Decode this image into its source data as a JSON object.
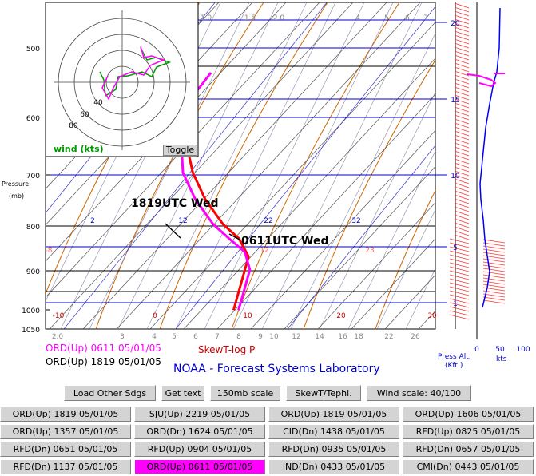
{
  "chart_data": {
    "type": "line",
    "title": "SkewT-log P",
    "ylabel": "Pressure (mb)",
    "pressure_ticks": [
      "500",
      "600",
      "700",
      "800",
      "900",
      "1000",
      "1050"
    ],
    "temp_bottom_ticks": [
      "2.0",
      "3",
      "4",
      "5",
      "6",
      "7",
      "8",
      "9",
      "10",
      "12",
      "14",
      "16",
      "18",
      "22",
      "26"
    ],
    "temp_top_ticks": [
      "1.0",
      "1.5",
      "2.0",
      "4",
      "5",
      "6",
      "7"
    ],
    "isotherm_labels": [
      "-10",
      "0",
      "10",
      "20",
      "30"
    ],
    "mixing_ratio_labels": [
      "2",
      "12",
      "22",
      "32"
    ],
    "pink_labels": [
      "-8",
      "12",
      "23"
    ],
    "series": [
      {
        "name": "1819UTC Wed",
        "color": "#ff0000",
        "values": [
          [
            450,
            -18
          ],
          [
            500,
            -17
          ],
          [
            600,
            -13
          ],
          [
            700,
            -7
          ],
          [
            750,
            -3
          ],
          [
            800,
            2
          ],
          [
            830,
            6
          ],
          [
            870,
            9
          ],
          [
            900,
            9
          ],
          [
            930,
            9
          ],
          [
            960,
            9
          ],
          [
            1000,
            9
          ]
        ]
      },
      {
        "name": "0611UTC Wed",
        "color": "#ff00ff",
        "values": [
          [
            540,
            -9
          ],
          [
            600,
            -13
          ],
          [
            700,
            -9
          ],
          [
            750,
            -5
          ],
          [
            800,
            0
          ],
          [
            830,
            4
          ],
          [
            860,
            8
          ],
          [
            900,
            10
          ],
          [
            940,
            10
          ],
          [
            1000,
            10
          ]
        ]
      }
    ],
    "annotations": [
      "1819UTC Wed",
      "0611UTC Wed"
    ],
    "alt_axis": {
      "label": "Press Alt. (Kft.)",
      "ticks": [
        "20",
        "15",
        "10",
        "5",
        "1"
      ]
    },
    "wind_axis": {
      "label": "kts",
      "ticks": [
        "0",
        "50",
        "100"
      ]
    },
    "hodograph": {
      "rings": [
        "40",
        "60",
        "80"
      ],
      "label": "wind (kts)"
    }
  },
  "labels": {
    "pressure": "Pressure",
    "mb": "(mb)",
    "line1": "ORD(Up) 0611 05/01/05",
    "line2": "ORD(Up) 1819 05/01/05",
    "lab": "NOAA - Forecast Systems Laboratory",
    "toggle": "Toggle"
  },
  "toolbar": [
    "Load Other Sdgs",
    "Get text",
    "150mb scale",
    "SkewT/Tephi.",
    "Wind scale: 40/100"
  ],
  "soundings": [
    [
      "ORD(Up) 1819 05/01/05",
      "SJU(Up) 2219 05/01/05",
      "ORD(Up) 1819 05/01/05",
      "ORD(Up) 1606 05/01/05"
    ],
    [
      "ORD(Up) 1357 05/01/05",
      "ORD(Dn) 1624 05/01/05",
      "CID(Dn) 1438 05/01/05",
      "RFD(Up) 0825 05/01/05"
    ],
    [
      "RFD(Dn) 0651 05/01/05",
      "RFD(Up) 0904 05/01/05",
      "RFD(Dn) 0935 05/01/05",
      "RFD(Dn) 0657 05/01/05"
    ],
    [
      "RFD(Dn) 1137 05/01/05",
      "ORD(Up) 0611 05/01/05",
      "IND(Dn) 0433 05/01/05",
      "CMI(Dn) 0443 05/01/05"
    ]
  ],
  "selected": {
    "row": 3,
    "col": 1
  },
  "colors": {
    "accent": "#ff00ff",
    "red": "#ff0000",
    "isobar": "#0000cc",
    "dryAdiabat": "#cc6600",
    "moist": "#ff8080"
  }
}
